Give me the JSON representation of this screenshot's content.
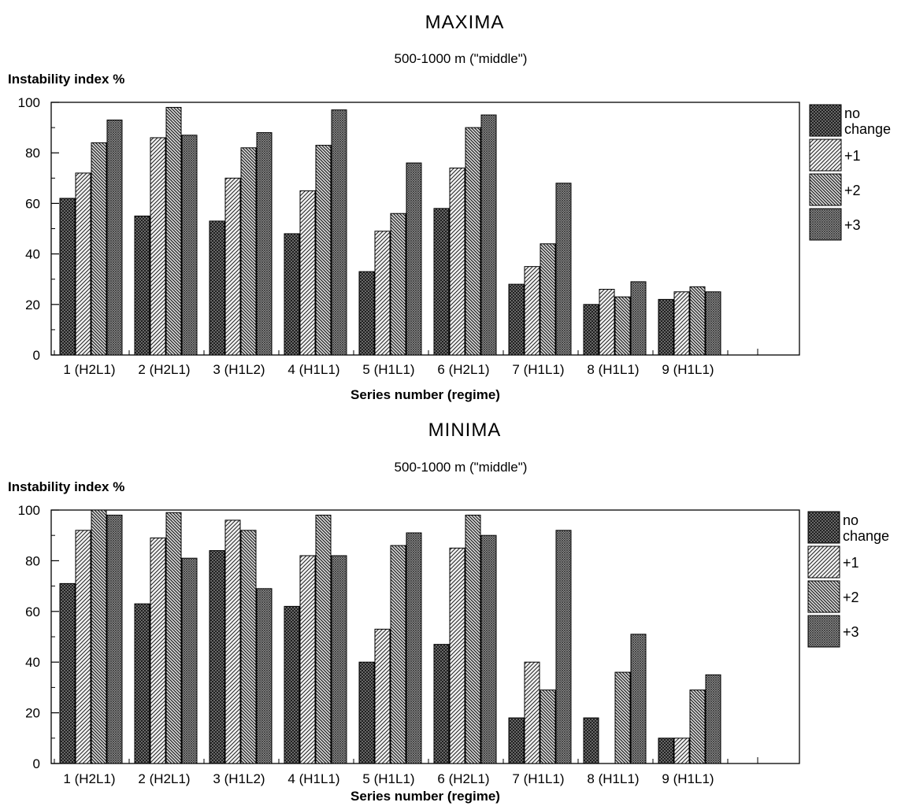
{
  "chart_data": [
    {
      "type": "bar",
      "title": "MAXIMA",
      "subtitle": "500-1000 m (\"middle\")",
      "ylabel": "Instability index %",
      "xlabel": "Series number (regime)",
      "ylim": [
        0,
        100
      ],
      "yticks": [
        "0",
        "20",
        "40",
        "60",
        "80",
        "100"
      ],
      "categories": [
        "1 (H2L1)",
        "2 (H2L1)",
        "3 (H1L2)",
        "4 (H1L1)",
        "5 (H1L1)",
        "6 (H2L1)",
        "7 (H1L1)",
        "8 (H1L1)",
        "9 (H1L1)"
      ],
      "series": [
        {
          "name": "no change",
          "values": [
            62,
            55,
            53,
            48,
            33,
            58,
            28,
            20,
            22
          ]
        },
        {
          "name": "+1",
          "values": [
            72,
            86,
            70,
            65,
            49,
            74,
            35,
            26,
            25
          ]
        },
        {
          "name": "+2",
          "values": [
            84,
            98,
            82,
            83,
            56,
            90,
            44,
            23,
            27
          ]
        },
        {
          "name": "+3",
          "values": [
            93,
            87,
            88,
            97,
            76,
            95,
            68,
            29,
            25
          ]
        }
      ],
      "legend": {
        "position": "right",
        "entries": [
          "no change",
          "+1",
          "+2",
          "+3"
        ]
      },
      "grid": false
    },
    {
      "type": "bar",
      "title": "MINIMA",
      "subtitle": "500-1000 m (\"middle\")",
      "ylabel": "Instability index %",
      "xlabel": "Series number (regime)",
      "ylim": [
        0,
        100
      ],
      "yticks": [
        "0",
        "20",
        "40",
        "60",
        "80",
        "100"
      ],
      "categories": [
        "1 (H2L1)",
        "2 (H2L1)",
        "3 (H1L2)",
        "4 (H1L1)",
        "5 (H1L1)",
        "6 (H2L1)",
        "7 (H1L1)",
        "8 (H1L1)",
        "9 (H1L1)"
      ],
      "series": [
        {
          "name": "no change",
          "values": [
            71,
            63,
            84,
            62,
            40,
            47,
            18,
            18,
            10
          ]
        },
        {
          "name": "+1",
          "values": [
            92,
            89,
            96,
            82,
            53,
            85,
            40,
            0,
            10
          ]
        },
        {
          "name": "+2",
          "values": [
            100,
            99,
            92,
            98,
            86,
            98,
            29,
            36,
            29
          ]
        },
        {
          "name": "+3",
          "values": [
            98,
            81,
            69,
            82,
            91,
            90,
            92,
            51,
            35
          ]
        }
      ],
      "legend": {
        "position": "right",
        "entries": [
          "no change",
          "+1",
          "+2",
          "+3"
        ]
      },
      "grid": false
    }
  ]
}
